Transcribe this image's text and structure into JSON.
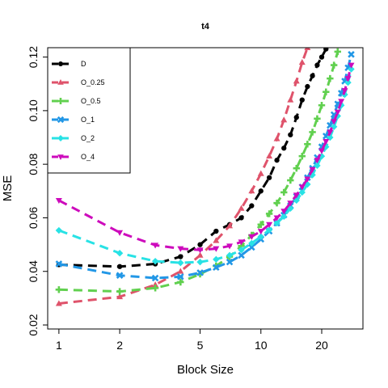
{
  "chart_data": {
    "type": "line",
    "title": "t4",
    "xlabel": "Block Size",
    "ylabel": "MSE",
    "x_scale": "log",
    "x_ticks": [
      1,
      2,
      5,
      10,
      20
    ],
    "y_ticks": [
      0.02,
      0.04,
      0.06,
      0.08,
      0.1,
      0.12
    ],
    "xlim": [
      0.88,
      32
    ],
    "ylim": [
      0.0185,
      0.1235
    ],
    "legend_position": "top-left",
    "grid": false,
    "x": [
      1,
      2,
      3,
      4,
      5,
      6,
      7,
      8,
      9,
      10,
      11,
      12,
      13,
      14,
      15,
      16,
      17,
      18,
      19,
      20,
      21,
      22,
      23,
      24,
      25,
      26,
      27,
      28
    ],
    "series": [
      {
        "name": "D",
        "color": "#000000",
        "marker": "circle",
        "values": [
          0.0425,
          0.0418,
          0.0428,
          0.0455,
          0.05,
          0.055,
          0.0575,
          0.06,
          0.0645,
          0.07,
          0.075,
          0.0815,
          0.086,
          0.091,
          0.0975,
          0.104,
          0.109,
          0.113,
          0.117,
          0.12,
          0.123,
          null,
          null,
          null,
          null,
          null,
          null,
          null
        ]
      },
      {
        "name": "O_0.25",
        "color": "#df536b",
        "marker": "triangle",
        "values": [
          0.028,
          0.0305,
          0.035,
          0.04,
          0.046,
          0.0515,
          0.057,
          0.0635,
          0.07,
          0.0765,
          0.083,
          0.0895,
          0.0965,
          0.104,
          0.111,
          0.118,
          0.1235,
          null,
          null,
          null,
          null,
          null,
          null,
          null,
          null,
          null,
          null,
          null
        ]
      },
      {
        "name": "O_0.5",
        "color": "#61d04f",
        "marker": "plus",
        "values": [
          0.0332,
          0.0325,
          0.0338,
          0.036,
          0.039,
          0.042,
          0.0455,
          0.0495,
          0.0535,
          0.0575,
          0.0615,
          0.0655,
          0.0695,
          0.074,
          0.0785,
          0.083,
          0.0875,
          0.092,
          0.097,
          0.102,
          0.107,
          0.112,
          0.117,
          0.122,
          null,
          null,
          null,
          null
        ]
      },
      {
        "name": "O_1",
        "color": "#2297e6",
        "marker": "cross",
        "values": [
          0.0428,
          0.0385,
          0.0375,
          0.038,
          0.0395,
          0.0415,
          0.0435,
          0.046,
          0.049,
          0.052,
          0.055,
          0.058,
          0.061,
          0.0645,
          0.068,
          0.0715,
          0.075,
          0.0785,
          0.0825,
          0.0865,
          0.0905,
          0.0945,
          0.0985,
          0.1025,
          0.1065,
          0.111,
          0.116,
          0.121
        ]
      },
      {
        "name": "O_2",
        "color": "#28e2e5",
        "marker": "diamond",
        "values": [
          0.0553,
          0.0468,
          0.0438,
          0.0432,
          0.0435,
          0.0445,
          0.046,
          0.048,
          0.0505,
          0.053,
          0.0555,
          0.058,
          0.0605,
          0.0635,
          0.0665,
          0.0695,
          0.0725,
          0.076,
          0.0795,
          0.083,
          0.0865,
          0.09,
          0.094,
          0.098,
          0.102,
          0.106,
          0.1105,
          0.1155
        ]
      },
      {
        "name": "O_4",
        "color": "#cd0bbc",
        "marker": "triangle-down",
        "values": [
          0.0665,
          0.0545,
          0.0498,
          0.0485,
          0.048,
          0.0485,
          0.0495,
          0.051,
          0.053,
          0.055,
          0.0575,
          0.06,
          0.0625,
          0.0655,
          0.0685,
          0.0715,
          0.0745,
          0.078,
          0.0815,
          0.085,
          0.0885,
          0.092,
          0.096,
          0.0995,
          0.1035,
          0.1075,
          0.112,
          0.117
        ]
      }
    ]
  }
}
